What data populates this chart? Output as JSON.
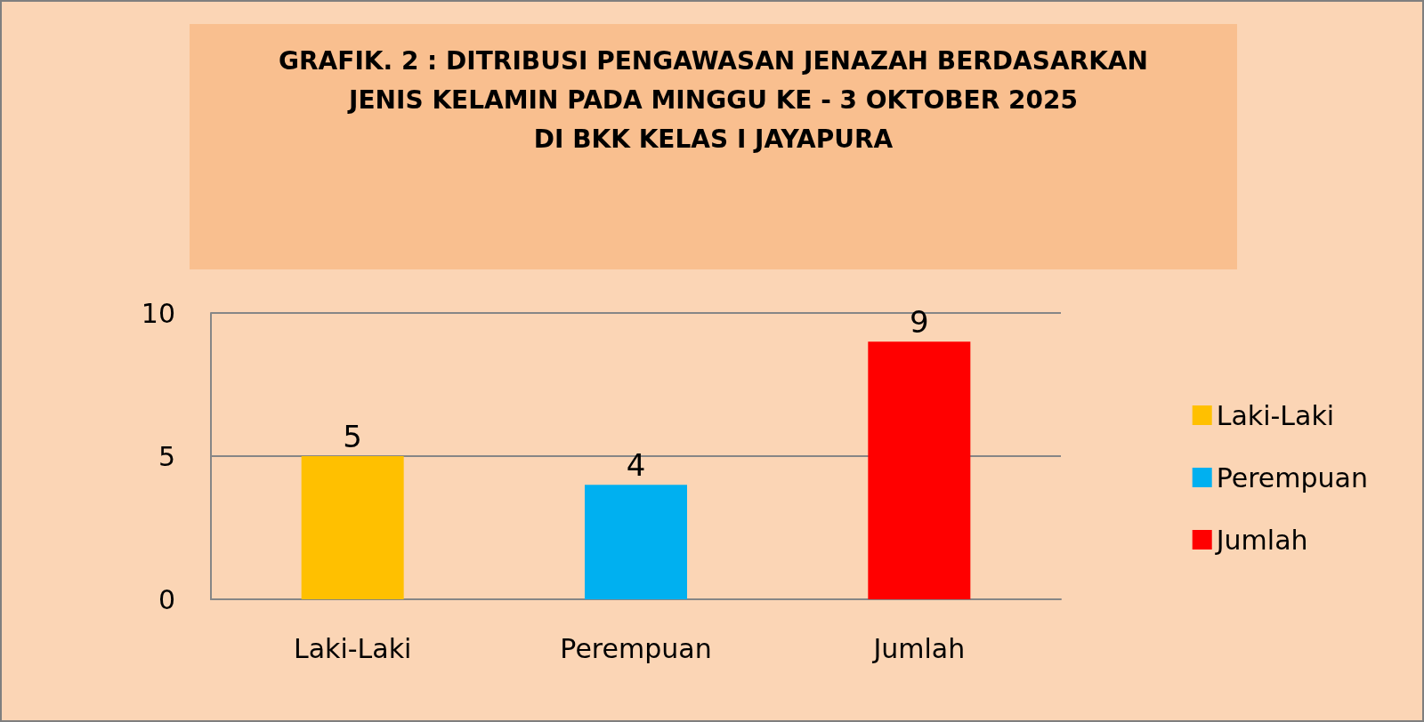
{
  "chart_data": {
    "type": "bar",
    "title": "GRAFIK. 2 : DITRIBUSI PENGAWASAN JENAZAH BERDASARKAN\nJENIS KELAMIN PADA MINGGU KE - 3 OKTOBER 2025\nDI BKK KELAS I JAYAPURA",
    "categories": [
      "Laki-Laki",
      "Perempuan",
      "Jumlah"
    ],
    "series": [
      {
        "name": "Laki-Laki",
        "color": "#ffc000",
        "values": [
          5,
          null,
          null
        ]
      },
      {
        "name": "Perempuan",
        "color": "#00b0f0",
        "values": [
          null,
          4,
          null
        ]
      },
      {
        "name": "Jumlah",
        "color": "#ff0000",
        "values": [
          null,
          null,
          9
        ]
      }
    ],
    "ylim": [
      0,
      10
    ],
    "yticks": [
      0,
      5,
      10
    ],
    "grid": "y",
    "legend": "right",
    "data_labels": true
  }
}
